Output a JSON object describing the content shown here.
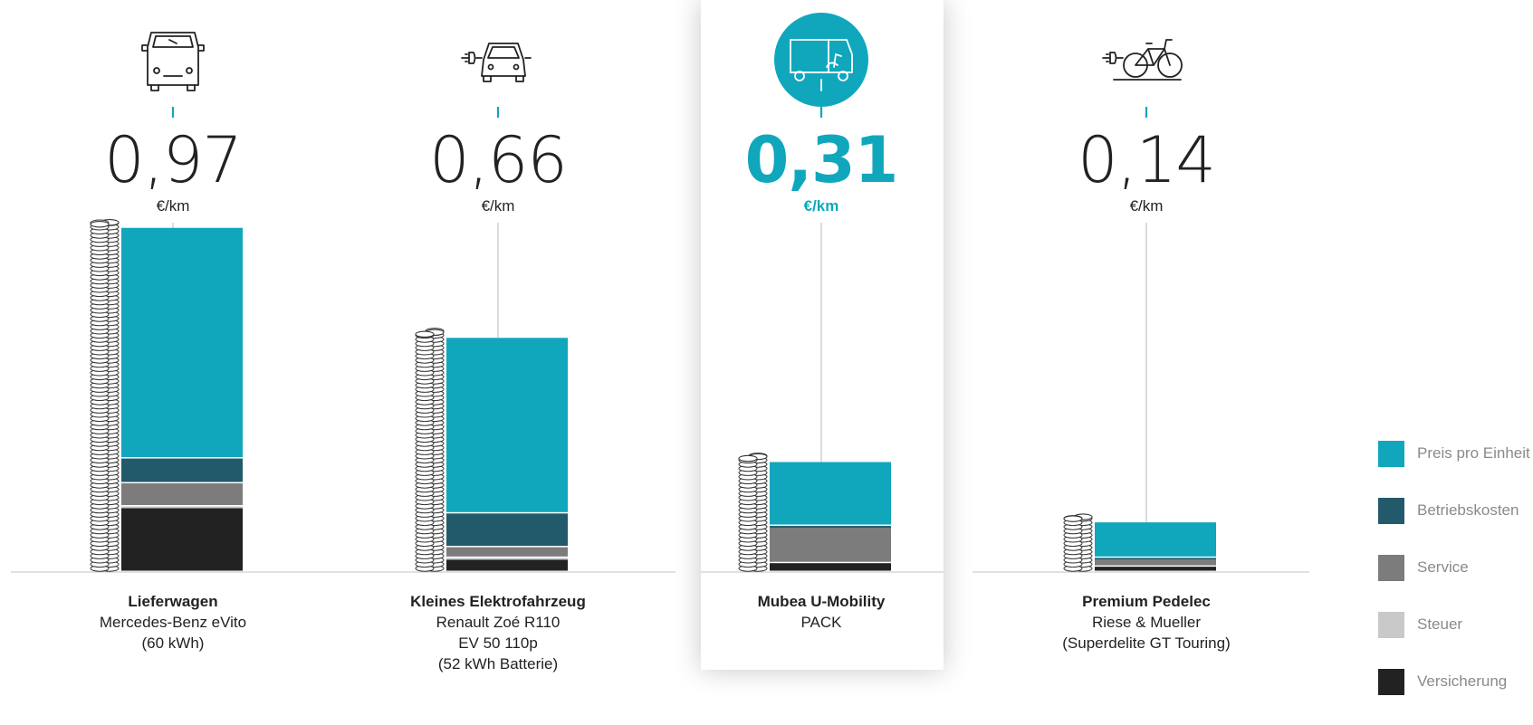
{
  "colors": {
    "preis": "#10a7bd",
    "betrieb": "#235a6b",
    "service": "#7c7c7c",
    "steuer": "#c9c9c9",
    "versicherung": "#222222",
    "accent": "#10a7bd"
  },
  "legend": [
    {
      "label": "Preis pro Einheit",
      "color": "#10a7bd"
    },
    {
      "label": "Betriebskosten",
      "color": "#235a6b"
    },
    {
      "label": "Service",
      "color": "#7c7c7c"
    },
    {
      "label": "Steuer",
      "color": "#c9c9c9"
    },
    {
      "label": "Versicherung",
      "color": "#222222"
    }
  ],
  "vehicles": [
    {
      "icon": "delivery-van-icon",
      "price": "0,97",
      "unit": "€/km",
      "name": "Lieferwagen",
      "line1": "Mercedes-Benz eVito",
      "line2": "(60 kWh)",
      "line3": "",
      "highlight": false
    },
    {
      "icon": "electric-car-icon",
      "price": "0,66",
      "unit": "€/km",
      "name": "Kleines Elektrofahrzeug",
      "line1": "Renault Zoé R110",
      "line2": "EV 50 110p",
      "line3": "(52 kWh Batterie)",
      "highlight": false
    },
    {
      "icon": "cargo-ebike-icon",
      "price": "0,31",
      "unit": "€/km",
      "name": "Mubea U-Mobility",
      "line1": "PACK",
      "line2": "",
      "line3": "",
      "highlight": true
    },
    {
      "icon": "pedelec-bicycle-icon",
      "price": "0,14",
      "unit": "€/km",
      "name": "Premium Pedelec",
      "line1": "Riese & Mueller",
      "line2": "(Superdelite GT Touring)",
      "line3": "",
      "highlight": false
    }
  ],
  "chart_data": {
    "type": "bar",
    "stacked": true,
    "categories": [
      "Lieferwagen",
      "Kleines Elektrofahrzeug",
      "Mubea U-Mobility",
      "Premium Pedelec"
    ],
    "totals": [
      0.97,
      0.66,
      0.31,
      0.14
    ],
    "unit": "€/km",
    "series": [
      {
        "name": "Versicherung",
        "values": [
          0.18,
          0.035,
          0.025,
          0.015
        ]
      },
      {
        "name": "Steuer",
        "values": [
          0.005,
          0.005,
          0.0,
          0.0
        ]
      },
      {
        "name": "Service",
        "values": [
          0.065,
          0.03,
          0.1,
          0.02
        ]
      },
      {
        "name": "Betriebskosten",
        "values": [
          0.07,
          0.095,
          0.005,
          0.005
        ]
      },
      {
        "name": "Preis pro Einheit",
        "values": [
          0.65,
          0.495,
          0.18,
          0.1
        ]
      }
    ],
    "grid": false,
    "legend": "right"
  }
}
